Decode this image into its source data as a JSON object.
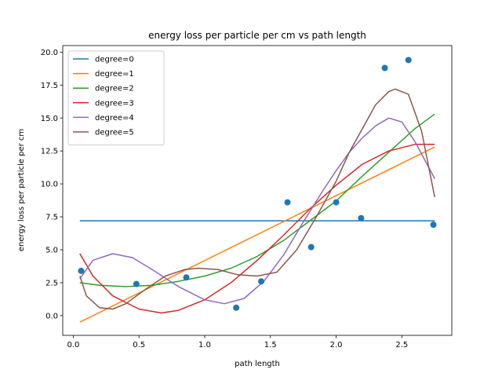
{
  "chart_data": {
    "type": "scatter",
    "title": "energy loss per particle per cm vs path length",
    "xlabel": "path length",
    "ylabel": "energy loss per particle per cm",
    "xlim": [
      -0.08,
      2.88
    ],
    "ylim": [
      -1.5,
      20.5
    ],
    "xticks": [
      0.0,
      0.5,
      1.0,
      1.5,
      2.0,
      2.5
    ],
    "xtick_labels": [
      "0.0",
      "0.5",
      "1.0",
      "1.5",
      "2.0",
      "2.5"
    ],
    "yticks": [
      0.0,
      2.5,
      5.0,
      7.5,
      10.0,
      12.5,
      15.0,
      17.5,
      20.0
    ],
    "ytick_labels": [
      "0.0",
      "2.5",
      "5.0",
      "7.5",
      "10.0",
      "12.5",
      "15.0",
      "17.5",
      "20.0"
    ],
    "grid": false,
    "legend_position": "top-left",
    "points": {
      "x": [
        0.06,
        0.48,
        0.86,
        1.24,
        1.43,
        1.63,
        1.81,
        2.0,
        2.19,
        2.37,
        2.55,
        2.74
      ],
      "y": [
        3.4,
        2.4,
        2.9,
        0.6,
        2.6,
        8.6,
        5.2,
        8.6,
        7.4,
        18.8,
        19.4,
        6.9
      ],
      "color": "#1f77b4"
    },
    "series": [
      {
        "name": "degree=0",
        "color": "#1f77b4",
        "x": [
          0.05,
          2.75
        ],
        "y": [
          7.2,
          7.2
        ]
      },
      {
        "name": "degree=1",
        "color": "#ff7f0e",
        "x": [
          0.05,
          2.75
        ],
        "y": [
          -0.5,
          12.8
        ]
      },
      {
        "name": "degree=2",
        "color": "#2ca02c",
        "x": [
          0.05,
          0.2,
          0.4,
          0.6,
          0.8,
          1.0,
          1.2,
          1.4,
          1.6,
          1.8,
          2.0,
          2.2,
          2.4,
          2.6,
          2.75
        ],
        "y": [
          2.5,
          2.3,
          2.2,
          2.3,
          2.6,
          3.0,
          3.6,
          4.5,
          5.7,
          7.2,
          8.7,
          10.6,
          12.4,
          14.2,
          15.3
        ]
      },
      {
        "name": "degree=3",
        "color": "#d62728",
        "x": [
          0.05,
          0.15,
          0.3,
          0.5,
          0.67,
          0.8,
          1.0,
          1.2,
          1.4,
          1.6,
          1.8,
          2.0,
          2.2,
          2.4,
          2.6,
          2.75
        ],
        "y": [
          4.7,
          3.0,
          1.5,
          0.5,
          0.2,
          0.4,
          1.2,
          2.5,
          4.2,
          6.1,
          8.1,
          9.9,
          11.5,
          12.5,
          13.0,
          13.0
        ]
      },
      {
        "name": "degree=4",
        "color": "#9467bd",
        "x": [
          0.05,
          0.15,
          0.3,
          0.45,
          0.6,
          0.8,
          1.0,
          1.15,
          1.3,
          1.45,
          1.6,
          1.75,
          1.9,
          2.0,
          2.1,
          2.2,
          2.3,
          2.4,
          2.5,
          2.6,
          2.75
        ],
        "y": [
          2.8,
          4.2,
          4.7,
          4.4,
          3.5,
          2.2,
          1.2,
          0.9,
          1.3,
          2.6,
          4.6,
          7.1,
          9.5,
          11.0,
          12.4,
          13.5,
          14.4,
          15.0,
          14.7,
          13.2,
          10.4
        ]
      },
      {
        "name": "degree=5",
        "color": "#8c564b",
        "x": [
          0.05,
          0.1,
          0.2,
          0.3,
          0.4,
          0.55,
          0.7,
          0.85,
          0.95,
          1.1,
          1.25,
          1.4,
          1.55,
          1.7,
          1.85,
          2.0,
          2.1,
          2.2,
          2.3,
          2.4,
          2.45,
          2.55,
          2.65,
          2.75
        ],
        "y": [
          3.0,
          1.5,
          0.6,
          0.5,
          0.9,
          2.0,
          3.0,
          3.5,
          3.6,
          3.5,
          3.1,
          3.0,
          3.3,
          5.0,
          7.5,
          10.2,
          12.4,
          14.2,
          16.0,
          17.0,
          17.2,
          16.8,
          14.0,
          9.0
        ]
      }
    ]
  }
}
